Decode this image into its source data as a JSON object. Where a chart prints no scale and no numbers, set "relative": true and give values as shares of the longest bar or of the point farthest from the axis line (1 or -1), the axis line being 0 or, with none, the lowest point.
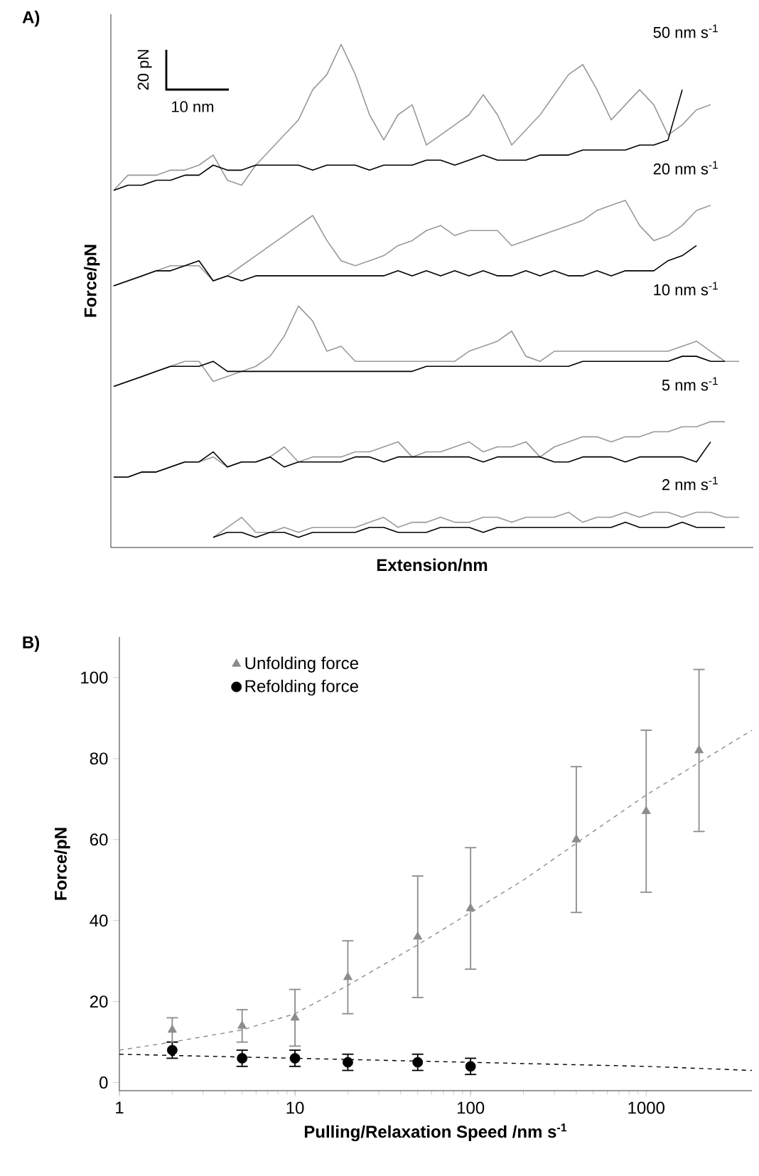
{
  "chart_data": [
    {
      "type": "line",
      "title": "A)",
      "xlabel": "Extension/nm",
      "ylabel": "Force/pN",
      "relative": true,
      "categories": [
        null,
        null,
        null,
        null,
        null,
        null,
        null,
        null,
        null,
        null,
        null,
        null,
        null,
        null,
        null,
        null,
        null,
        null,
        null,
        null,
        null,
        null,
        null,
        null,
        null,
        null,
        null,
        null,
        null,
        null,
        null,
        null,
        null,
        null,
        null,
        null,
        null,
        null,
        null,
        null,
        null,
        null,
        null,
        null,
        null
      ],
      "annotations": [
        "50 nm s$^{-1}$",
        "20 nm s$^{-1}$",
        "10 nm s$^{-1}$",
        "5 nm s$^{-1}$",
        "2 nm s$^{-1}$",
        "20 pN",
        "10 nm"
      ],
      "series": [
        {
          "color": "#999999",
          "values": [
            0.71,
            0.74,
            0.74,
            0.74,
            0.75,
            0.75,
            0.76,
            0.78,
            0.73,
            0.72,
            0.76,
            0.79,
            0.82,
            0.85,
            0.91,
            0.94,
            1.0,
            0.94,
            0.86,
            0.81,
            0.86,
            0.88,
            0.8,
            0.82,
            0.84,
            0.86,
            0.9,
            0.86,
            0.8,
            0.83,
            0.86,
            0.9,
            0.94,
            0.96,
            0.91,
            0.85,
            0.88,
            0.91,
            0.88,
            0.82,
            0.84,
            0.87,
            0.88,
            null,
            null
          ]
        },
        {
          "color": "#000000",
          "values": [
            0.71,
            0.72,
            0.72,
            0.73,
            0.73,
            0.74,
            0.74,
            0.76,
            0.75,
            0.75,
            0.76,
            0.76,
            0.76,
            0.76,
            0.75,
            0.76,
            0.76,
            0.76,
            0.75,
            0.76,
            0.76,
            0.76,
            0.77,
            0.77,
            0.76,
            0.77,
            0.78,
            0.77,
            0.77,
            0.77,
            0.78,
            0.78,
            0.78,
            0.79,
            0.79,
            0.79,
            0.79,
            0.8,
            0.8,
            0.81,
            0.91,
            null,
            null,
            null,
            null
          ]
        },
        {
          "color": "#999999",
          "values": [
            0.52,
            0.53,
            0.54,
            0.55,
            0.56,
            0.56,
            0.56,
            0.53,
            0.54,
            0.56,
            0.58,
            0.6,
            0.62,
            0.64,
            0.66,
            0.61,
            0.57,
            0.56,
            0.57,
            0.58,
            0.6,
            0.61,
            0.63,
            0.64,
            0.62,
            0.63,
            0.63,
            0.63,
            0.6,
            0.61,
            0.62,
            0.63,
            0.64,
            0.65,
            0.67,
            0.68,
            0.69,
            0.64,
            0.61,
            0.62,
            0.64,
            0.67,
            0.68,
            null,
            null
          ]
        },
        {
          "color": "#000000",
          "values": [
            0.52,
            0.53,
            0.54,
            0.55,
            0.55,
            0.56,
            0.57,
            0.53,
            0.54,
            0.53,
            0.54,
            0.54,
            0.54,
            0.54,
            0.54,
            0.54,
            0.54,
            0.54,
            0.54,
            0.54,
            0.55,
            0.54,
            0.55,
            0.54,
            0.55,
            0.54,
            0.55,
            0.54,
            0.54,
            0.55,
            0.54,
            0.55,
            0.54,
            0.54,
            0.55,
            0.54,
            0.55,
            0.55,
            0.55,
            0.57,
            0.58,
            0.6,
            null,
            null,
            null
          ]
        },
        {
          "color": "#999999",
          "values": [
            0.32,
            0.33,
            0.34,
            0.35,
            0.36,
            0.37,
            0.37,
            0.33,
            0.34,
            0.35,
            0.36,
            0.38,
            0.42,
            0.48,
            0.45,
            0.39,
            0.4,
            0.37,
            0.37,
            0.37,
            0.37,
            0.37,
            0.37,
            0.37,
            0.37,
            0.39,
            0.4,
            0.41,
            0.43,
            0.38,
            0.37,
            0.39,
            0.39,
            0.39,
            0.39,
            0.39,
            0.39,
            0.39,
            0.39,
            0.39,
            0.4,
            0.41,
            0.39,
            0.37,
            0.37
          ]
        },
        {
          "color": "#000000",
          "values": [
            0.32,
            0.33,
            0.34,
            0.35,
            0.36,
            0.36,
            0.36,
            0.37,
            0.35,
            0.35,
            0.35,
            0.35,
            0.35,
            0.35,
            0.35,
            0.35,
            0.35,
            0.35,
            0.35,
            0.35,
            0.35,
            0.35,
            0.36,
            0.36,
            0.36,
            0.36,
            0.36,
            0.36,
            0.36,
            0.36,
            0.36,
            0.36,
            0.36,
            0.37,
            0.37,
            0.37,
            0.37,
            0.37,
            0.37,
            0.37,
            0.38,
            0.38,
            0.37,
            0.37,
            null
          ]
        },
        {
          "color": "#999999",
          "values": [
            0.14,
            0.14,
            0.15,
            0.15,
            0.16,
            0.17,
            0.17,
            0.18,
            0.16,
            0.17,
            0.17,
            0.18,
            0.2,
            0.17,
            0.18,
            0.18,
            0.18,
            0.19,
            0.19,
            0.2,
            0.21,
            0.18,
            0.19,
            0.19,
            0.2,
            0.21,
            0.19,
            0.2,
            0.2,
            0.21,
            0.18,
            0.2,
            0.21,
            0.22,
            0.22,
            0.21,
            0.22,
            0.22,
            0.23,
            0.23,
            0.24,
            0.24,
            0.25,
            0.25,
            null
          ]
        },
        {
          "color": "#000000",
          "values": [
            0.14,
            0.14,
            0.15,
            0.15,
            0.16,
            0.17,
            0.17,
            0.19,
            0.16,
            0.17,
            0.17,
            0.18,
            0.16,
            0.17,
            0.17,
            0.17,
            0.17,
            0.18,
            0.18,
            0.17,
            0.18,
            0.18,
            0.18,
            0.18,
            0.18,
            0.18,
            0.17,
            0.18,
            0.18,
            0.18,
            0.18,
            0.17,
            0.17,
            0.18,
            0.18,
            0.18,
            0.17,
            0.18,
            0.18,
            0.18,
            0.18,
            0.17,
            0.21,
            null,
            null
          ]
        },
        {
          "color": "#999999",
          "values": [
            null,
            null,
            null,
            null,
            null,
            null,
            null,
            0.02,
            0.04,
            0.06,
            0.03,
            0.03,
            0.04,
            0.03,
            0.04,
            0.04,
            0.04,
            0.04,
            0.05,
            0.06,
            0.04,
            0.05,
            0.05,
            0.06,
            0.05,
            0.05,
            0.06,
            0.06,
            0.05,
            0.06,
            0.06,
            0.06,
            0.07,
            0.05,
            0.06,
            0.06,
            0.07,
            0.06,
            0.07,
            0.07,
            0.06,
            0.07,
            0.07,
            0.06,
            0.06
          ]
        },
        {
          "color": "#000000",
          "values": [
            null,
            null,
            null,
            null,
            null,
            null,
            null,
            0.02,
            0.03,
            0.03,
            0.02,
            0.03,
            0.03,
            0.02,
            0.03,
            0.03,
            0.03,
            0.03,
            0.04,
            0.04,
            0.03,
            0.03,
            0.03,
            0.04,
            0.04,
            0.04,
            0.03,
            0.04,
            0.04,
            0.04,
            0.04,
            0.04,
            0.04,
            0.04,
            0.04,
            0.04,
            0.05,
            0.04,
            0.04,
            0.04,
            0.05,
            0.04,
            0.04,
            0.04,
            null
          ]
        }
      ]
    },
    {
      "type": "scatter",
      "title": "B)",
      "xlabel": "Pulling/Relaxation Speed /nm s$^{-1}$",
      "ylabel": "Force/pN",
      "log": "x",
      "legend": "top left",
      "xlim": [
        1,
        4000
      ],
      "ylim": [
        -2,
        110
      ],
      "xticks": [
        1,
        10,
        100,
        1000
      ],
      "yticks": [
        0,
        20,
        40,
        60,
        80,
        100
      ],
      "series": [
        {
          "name": "Unfolding force",
          "type": "scatter",
          "marker": "triangle",
          "color": "#8c8c8c",
          "x": [
            2,
            5,
            10,
            20,
            50,
            100,
            400,
            1000,
            2000
          ],
          "values": [
            13,
            14,
            16,
            26,
            36,
            43,
            60,
            67,
            82
          ],
          "errors": [
            3,
            4,
            7,
            9,
            15,
            15,
            18,
            20,
            20
          ]
        },
        {
          "name": "Refolding force",
          "type": "scatter",
          "marker": "circle",
          "color": "#000000",
          "x": [
            2,
            5,
            10,
            20,
            50,
            100
          ],
          "values": [
            8,
            6,
            6,
            5,
            5,
            4
          ],
          "errors": [
            2,
            2,
            2,
            2,
            2,
            2
          ]
        },
        {
          "type": "line",
          "line_style": "dashed",
          "color": "#8c8c8c",
          "x": [
            1,
            2,
            5,
            10,
            20,
            50,
            100,
            200,
            500,
            1000,
            2000,
            4000
          ],
          "values": [
            8,
            10,
            13,
            17,
            24,
            34,
            42,
            50,
            62,
            71,
            79,
            87
          ]
        },
        {
          "type": "line",
          "line_style": "dashed",
          "color": "#000000",
          "x": [
            1,
            10,
            100,
            1000,
            4000
          ],
          "values": [
            7,
            6,
            5,
            4,
            3
          ]
        }
      ]
    }
  ]
}
